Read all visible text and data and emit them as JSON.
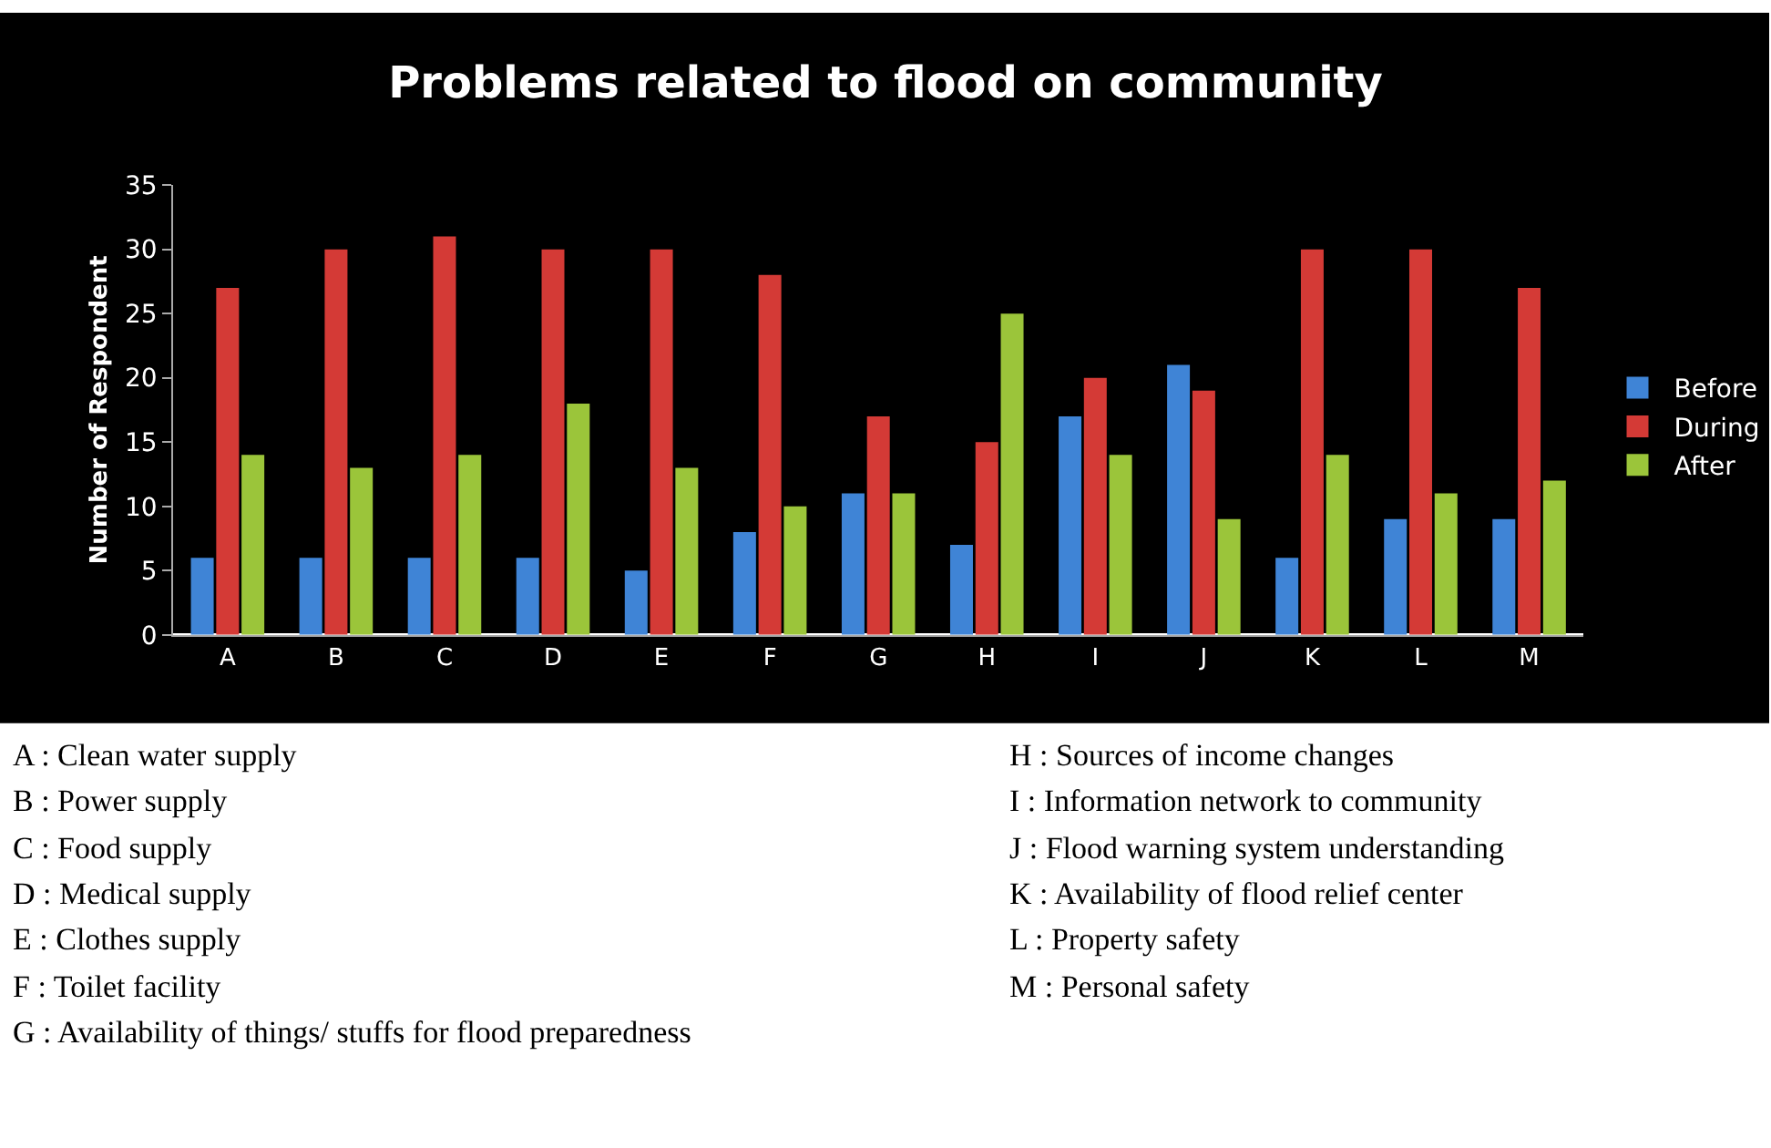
{
  "chart_data": {
    "type": "bar",
    "title": "Problems related to flood on community",
    "ylabel": "Number of Respondent",
    "categories": [
      "A",
      "B",
      "C",
      "D",
      "E",
      "F",
      "G",
      "H",
      "I",
      "J",
      "K",
      "L",
      "M"
    ],
    "series": [
      {
        "name": "Before",
        "color": "#3f84d6",
        "values": [
          6,
          6,
          6,
          6,
          5,
          8,
          11,
          7,
          17,
          21,
          6,
          9,
          9
        ]
      },
      {
        "name": "During",
        "color": "#d43a36",
        "values": [
          27,
          30,
          31,
          30,
          30,
          28,
          17,
          15,
          20,
          19,
          30,
          30,
          27
        ]
      },
      {
        "name": "After",
        "color": "#9bc53a",
        "values": [
          14,
          13,
          14,
          18,
          13,
          10,
          11,
          25,
          14,
          9,
          14,
          11,
          12
        ]
      }
    ],
    "ylim": [
      0,
      35
    ],
    "yticks": [
      0,
      5,
      10,
      15,
      20,
      25,
      30,
      35
    ],
    "grid": false,
    "legend": "right",
    "annotations": [
      "A : Clean water supply",
      "B : Power supply",
      "C : Food supply",
      "D : Medical supply",
      "E : Clothes supply",
      "F : Toilet facility",
      "G : Availability of things/ stuffs for flood preparedness",
      "H : Sources of income changes",
      "I : Information network to community",
      "J : Flood warning system understanding",
      "K : Availability of flood relief center",
      "L : Property safety",
      "M : Personal safety"
    ]
  }
}
